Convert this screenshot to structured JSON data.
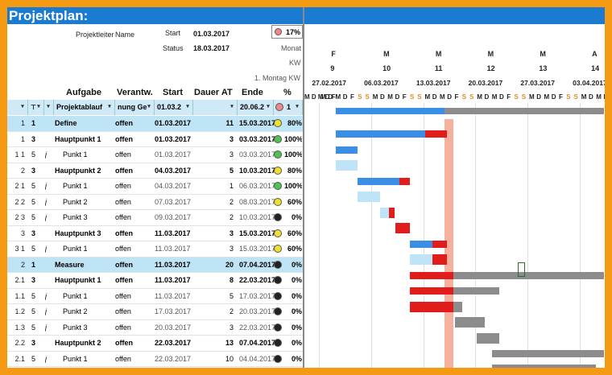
{
  "title": "Projektplan:",
  "header": {
    "projektleiter_label": "Projektleiter",
    "projektleiter_value": "Name",
    "start_label": "Start",
    "start_value": "01.03.2017",
    "status_label": "Status",
    "status_value": "18.03.2017",
    "progress": "17%",
    "monat_label": "Monat",
    "kw_label": "KW",
    "montag_label": "1. Montag KW"
  },
  "columns": {
    "aufgabe": "Aufgabe",
    "verantw": "Verantw.",
    "start": "Start",
    "dauer": "Dauer AT",
    "ende": "Ende",
    "pct": "%"
  },
  "filter_row": {
    "task": "Projektablauf",
    "resp": "nung Ge",
    "start": "01.03.2",
    "end": "20.06.2",
    "pct": "1"
  },
  "rows": [
    {
      "id": "1",
      "lvl": "1",
      "sym": "",
      "task": "Define",
      "resp": "offen",
      "start": "01.03.2017",
      "dur": "11",
      "end": "15.03.2017",
      "dot": "#f0e030",
      "pct": "80%",
      "hl": true,
      "bold": true
    },
    {
      "id": "1",
      "lvl": "3",
      "sym": "",
      "task": "Hauptpunkt 1",
      "resp": "offen",
      "start": "01.03.2017",
      "dur": "3",
      "end": "03.03.2017",
      "dot": "#4fc24f",
      "pct": "100%",
      "hl": false,
      "bold": true
    },
    {
      "id": "1 1",
      "lvl": "5",
      "sym": "j",
      "task": "Punkt 1",
      "resp": "offen",
      "start": "01.03.2017",
      "dur": "3",
      "end": "03.03.2017",
      "dot": "#4fc24f",
      "pct": "100%",
      "hl": false,
      "bold": false
    },
    {
      "id": "2",
      "lvl": "3",
      "sym": "",
      "task": "Hauptpunkt 2",
      "resp": "offen",
      "start": "04.03.2017",
      "dur": "5",
      "end": "10.03.2017",
      "dot": "#f0e030",
      "pct": "80%",
      "hl": false,
      "bold": true
    },
    {
      "id": "2 1",
      "lvl": "5",
      "sym": "j",
      "task": "Punkt 1",
      "resp": "offen",
      "start": "04.03.2017",
      "dur": "1",
      "end": "06.03.2017",
      "dot": "#4fc24f",
      "pct": "100%",
      "hl": false,
      "bold": false
    },
    {
      "id": "2 2",
      "lvl": "5",
      "sym": "j",
      "task": "Punkt 2",
      "resp": "offen",
      "start": "07.03.2017",
      "dur": "2",
      "end": "08.03.2017",
      "dot": "#f0e030",
      "pct": "60%",
      "hl": false,
      "bold": false
    },
    {
      "id": "2 3",
      "lvl": "5",
      "sym": "j",
      "task": "Punkt 3",
      "resp": "offen",
      "start": "09.03.2017",
      "dur": "2",
      "end": "10.03.2017",
      "dot": "#222222",
      "pct": "0%",
      "hl": false,
      "bold": false
    },
    {
      "id": "3",
      "lvl": "3",
      "sym": "",
      "task": "Hauptpunkt 3",
      "resp": "offen",
      "start": "11.03.2017",
      "dur": "3",
      "end": "15.03.2017",
      "dot": "#f0e030",
      "pct": "60%",
      "hl": false,
      "bold": true
    },
    {
      "id": "3 1",
      "lvl": "5",
      "sym": "j",
      "task": "Punkt 1",
      "resp": "offen",
      "start": "11.03.2017",
      "dur": "3",
      "end": "15.03.2017",
      "dot": "#f0e030",
      "pct": "60%",
      "hl": false,
      "bold": false
    },
    {
      "id": "2",
      "lvl": "1",
      "sym": "",
      "task": "Measure",
      "resp": "offen",
      "start": "11.03.2017",
      "dur": "20",
      "end": "07.04.2017",
      "dot": "#222222",
      "pct": "0%",
      "hl": true,
      "bold": true
    },
    {
      "id": "2.1",
      "lvl": "3",
      "sym": "",
      "task": "Hauptpunkt 1",
      "resp": "offen",
      "start": "11.03.2017",
      "dur": "8",
      "end": "22.03.2017",
      "dot": "#222222",
      "pct": "0%",
      "hl": false,
      "bold": true
    },
    {
      "id": "1.1",
      "lvl": "5",
      "sym": "j",
      "task": "Punkt 1",
      "resp": "offen",
      "start": "11.03.2017",
      "dur": "5",
      "end": "17.03.2017",
      "dot": "#222222",
      "pct": "0%",
      "hl": false,
      "bold": false
    },
    {
      "id": "1.2",
      "lvl": "5",
      "sym": "j",
      "task": "Punkt 2",
      "resp": "offen",
      "start": "17.03.2017",
      "dur": "2",
      "end": "20.03.2017",
      "dot": "#222222",
      "pct": "0%",
      "hl": false,
      "bold": false
    },
    {
      "id": "1.3",
      "lvl": "5",
      "sym": "j",
      "task": "Punkt 3",
      "resp": "offen",
      "start": "20.03.2017",
      "dur": "3",
      "end": "22.03.2017",
      "dot": "#222222",
      "pct": "0%",
      "hl": false,
      "bold": false
    },
    {
      "id": "2.2",
      "lvl": "3",
      "sym": "",
      "task": "Hauptpunkt 2",
      "resp": "offen",
      "start": "22.03.2017",
      "dur": "13",
      "end": "07.04.2017",
      "dot": "#222222",
      "pct": "0%",
      "hl": false,
      "bold": true
    },
    {
      "id": "2.1",
      "lvl": "5",
      "sym": "j",
      "task": "Punkt 1",
      "resp": "offen",
      "start": "22.03.2017",
      "dur": "10",
      "end": "04.04.2017",
      "dot": "#222222",
      "pct": "0%",
      "hl": false,
      "bold": false
    }
  ],
  "timeline": {
    "months": [
      "F",
      "M",
      "M",
      "M",
      "M",
      "A"
    ],
    "kws": [
      "9",
      "10",
      "11",
      "12",
      "13",
      "14"
    ],
    "mondays": [
      "27.02.2017",
      "06.03.2017",
      "13.03.2017",
      "20.03.2017",
      "27.03.2017",
      "03.04.2017"
    ],
    "day_pattern": [
      "M",
      "D",
      "M",
      "D",
      "F",
      "S",
      "S"
    ],
    "first_day_label": "M D M D F"
  },
  "colors": {
    "blue_bar": "#3a8ee6",
    "light_blue": "#bfe3f7",
    "red_bar": "#e21b1b",
    "gray_bar": "#8c8c8c",
    "today_marker": "#f5a28a",
    "banner": "#1b7bd1"
  }
}
